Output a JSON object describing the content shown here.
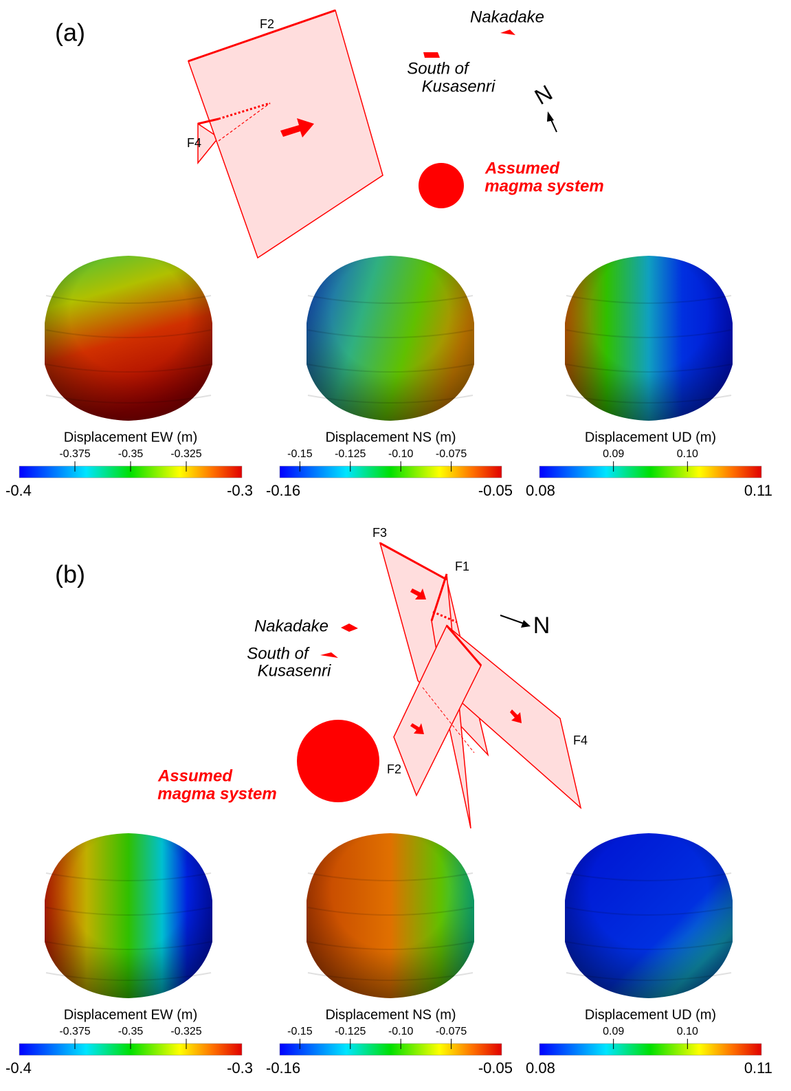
{
  "panels": [
    {
      "label": "(a)",
      "faults": [
        "F2",
        "F4"
      ],
      "nakadake": "Nakadake",
      "south": [
        "South of",
        "Kusasenri"
      ],
      "north": "N",
      "magma": [
        "Assumed",
        "magma system"
      ],
      "colorbars": [
        {
          "title": "Displacement EW (m)",
          "min": -0.4,
          "max": -0.3,
          "ticks": [
            -0.375,
            -0.35,
            -0.325
          ]
        },
        {
          "title": "Displacement NS (m)",
          "min": -0.16,
          "max": -0.05,
          "ticks": [
            -0.15,
            -0.125,
            {
              "value": -0.1,
              "label": "-0.10"
            },
            -0.075
          ]
        },
        {
          "title": "Displacement UD (m)",
          "min": 0.08,
          "max": 0.11,
          "ticks": [
            0.09,
            {
              "value": 0.1,
              "label": "0.10"
            }
          ]
        }
      ]
    },
    {
      "label": "(b)",
      "faults": [
        "F3",
        "F1",
        "F4",
        "F2"
      ],
      "nakadake": "Nakadake",
      "south": [
        "South of",
        "Kusasenri"
      ],
      "north": "N",
      "magma": [
        "Assumed",
        "magma system"
      ],
      "colorbars": [
        {
          "title": "Displacement EW (m)",
          "min": -0.4,
          "max": -0.3,
          "ticks": [
            -0.375,
            -0.35,
            -0.325
          ]
        },
        {
          "title": "Displacement NS (m)",
          "min": -0.16,
          "max": -0.05,
          "ticks": [
            -0.15,
            -0.125,
            {
              "value": -0.1,
              "label": "-0.10"
            },
            -0.075
          ]
        },
        {
          "title": "Displacement UD (m)",
          "min": 0.08,
          "max": 0.11,
          "ticks": [
            0.09,
            {
              "value": 0.1,
              "label": "0.10"
            }
          ]
        }
      ]
    }
  ]
}
